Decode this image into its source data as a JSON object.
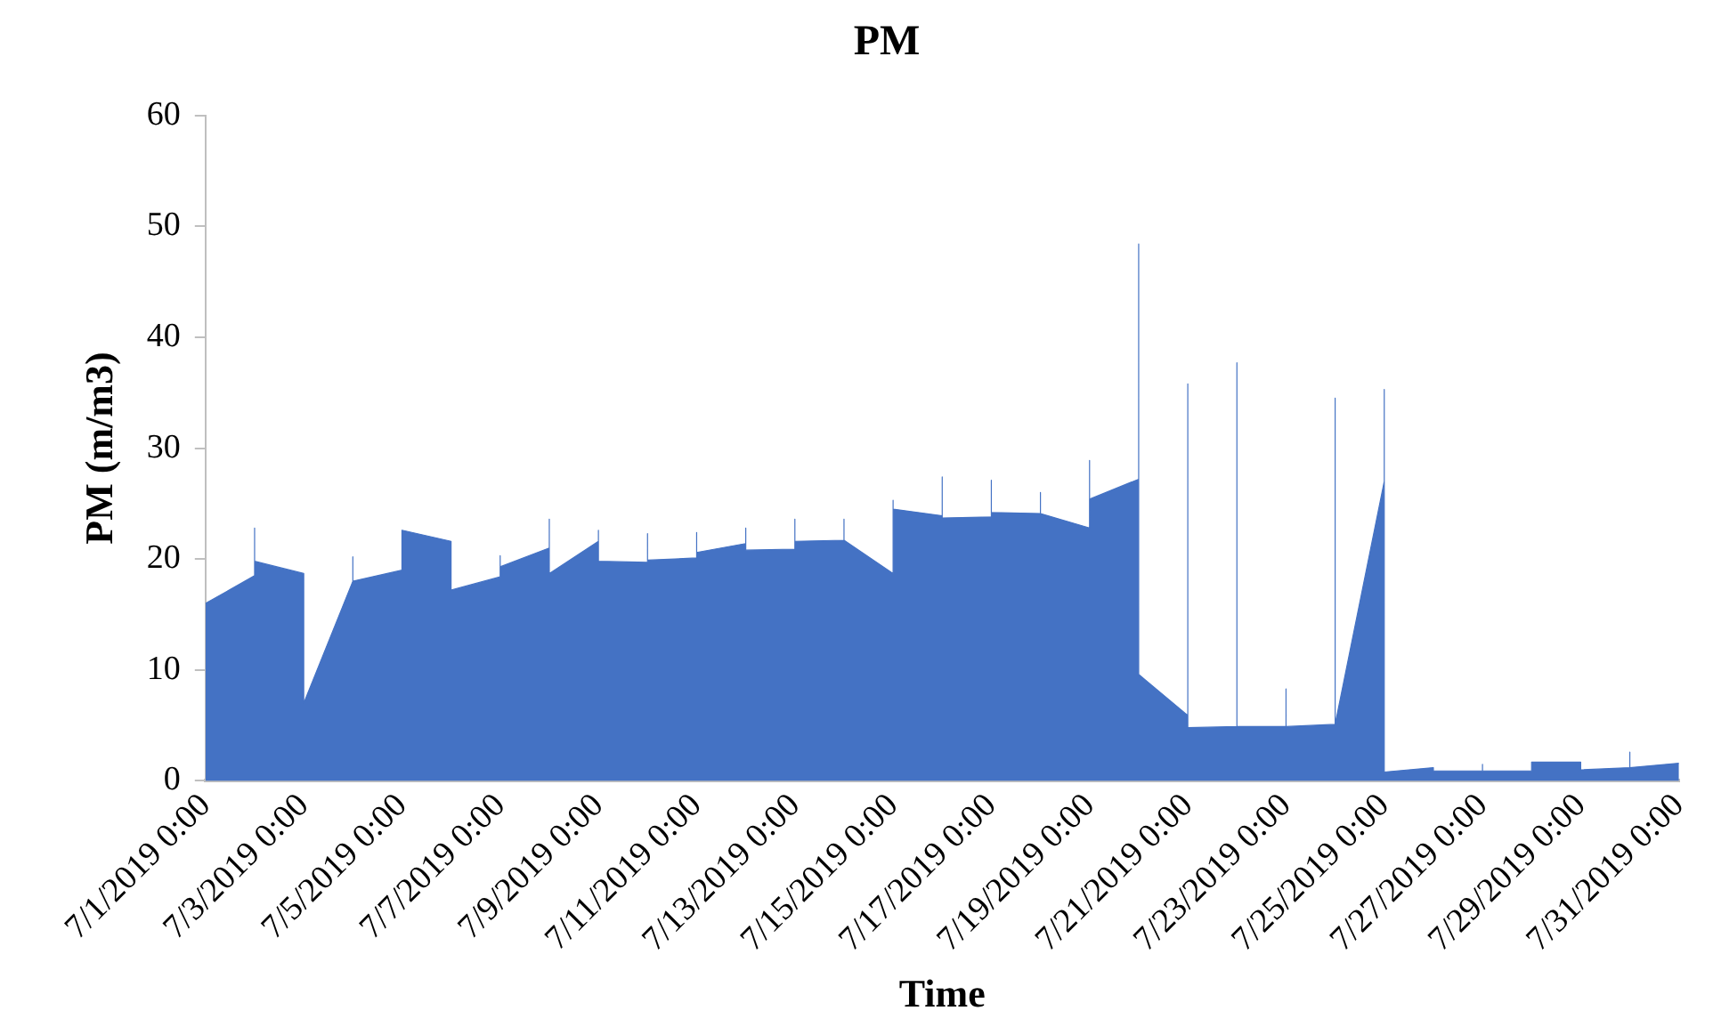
{
  "chart_data": {
    "type": "area",
    "title": "PM",
    "xlabel": "Time",
    "ylabel": "PM (m/m3)",
    "x": [
      "2019-07-01T00:00",
      "2019-07-02T00:00",
      "2019-07-02T00:00",
      "2019-07-02T00:00",
      "2019-07-03T00:00",
      "2019-07-03T00:00",
      "2019-07-04T00:00",
      "2019-07-04T00:00",
      "2019-07-04T00:00",
      "2019-07-05T00:00",
      "2019-07-05T00:00",
      "2019-07-06T00:00",
      "2019-07-06T00:00",
      "2019-07-07T00:00",
      "2019-07-07T00:00",
      "2019-07-07T00:00",
      "2019-07-08T00:00",
      "2019-07-08T00:00",
      "2019-07-08T00:00",
      "2019-07-09T00:00",
      "2019-07-09T00:00",
      "2019-07-09T00:00",
      "2019-07-10T00:00",
      "2019-07-10T00:00",
      "2019-07-10T00:00",
      "2019-07-11T00:00",
      "2019-07-11T00:00",
      "2019-07-11T00:00",
      "2019-07-12T00:00",
      "2019-07-12T00:00",
      "2019-07-12T00:00",
      "2019-07-13T00:00",
      "2019-07-13T00:00",
      "2019-07-13T00:00",
      "2019-07-14T00:00",
      "2019-07-14T00:00",
      "2019-07-14T00:00",
      "2019-07-15T00:00",
      "2019-07-15T00:00",
      "2019-07-15T00:00",
      "2019-07-16T00:00",
      "2019-07-16T00:00",
      "2019-07-16T00:00",
      "2019-07-17T00:00",
      "2019-07-17T00:00",
      "2019-07-17T00:00",
      "2019-07-18T00:00",
      "2019-07-18T00:00",
      "2019-07-18T00:00",
      "2019-07-19T00:00",
      "2019-07-19T00:00",
      "2019-07-19T00:00",
      "2019-07-20T00:00",
      "2019-07-20T00:00",
      "2019-07-20T00:00",
      "2019-07-21T00:00",
      "2019-07-21T00:00",
      "2019-07-21T00:00",
      "2019-07-22T00:00",
      "2019-07-22T00:00",
      "2019-07-22T00:00",
      "2019-07-23T00:00",
      "2019-07-23T00:00",
      "2019-07-23T00:00",
      "2019-07-24T00:00",
      "2019-07-24T00:00",
      "2019-07-24T00:00",
      "2019-07-25T00:00",
      "2019-07-25T00:00",
      "2019-07-25T00:00",
      "2019-07-26T00:00",
      "2019-07-26T00:00",
      "2019-07-27T00:00",
      "2019-07-27T00:00",
      "2019-07-27T00:00",
      "2019-07-28T00:00",
      "2019-07-28T00:00",
      "2019-07-29T00:00",
      "2019-07-29T00:00",
      "2019-07-30T00:00",
      "2019-07-30T00:00",
      "2019-07-30T00:00",
      "2019-07-31T00:00"
    ],
    "series": [
      {
        "color": "#4472c4",
        "values": [
          16.0,
          18.5,
          22.8,
          19.8,
          18.7,
          7.0,
          18.0,
          20.2,
          18.0,
          19.0,
          22.6,
          21.6,
          17.2,
          18.4,
          20.3,
          19.3,
          21.0,
          23.6,
          18.7,
          21.6,
          22.6,
          19.8,
          19.7,
          22.3,
          19.9,
          20.1,
          22.4,
          20.6,
          21.4,
          22.8,
          20.8,
          20.9,
          23.6,
          21.6,
          21.7,
          23.6,
          21.7,
          18.7,
          25.3,
          24.5,
          23.9,
          27.4,
          23.7,
          23.8,
          27.1,
          24.2,
          24.1,
          26.0,
          24.1,
          22.8,
          28.9,
          25.4,
          27.2,
          48.4,
          9.6,
          5.9,
          35.8,
          4.8,
          4.9,
          37.7,
          4.9,
          4.9,
          8.3,
          4.9,
          5.1,
          34.5,
          5.1,
          27.0,
          35.3,
          0.8,
          1.2,
          0.9,
          0.9,
          1.5,
          0.9,
          0.9,
          1.7,
          1.7,
          1.0,
          1.2,
          2.6,
          1.2,
          1.6
        ]
      }
    ],
    "xlim": [
      "2019-07-01T00:00",
      "2019-07-31T00:00"
    ],
    "xticks": [
      {
        "value": "2019-07-01T00:00",
        "label": "7/1/2019 0:00"
      },
      {
        "value": "2019-07-03T00:00",
        "label": "7/3/2019 0:00"
      },
      {
        "value": "2019-07-05T00:00",
        "label": "7/5/2019 0:00"
      },
      {
        "value": "2019-07-07T00:00",
        "label": "7/7/2019 0:00"
      },
      {
        "value": "2019-07-09T00:00",
        "label": "7/9/2019 0:00"
      },
      {
        "value": "2019-07-11T00:00",
        "label": "7/11/2019 0:00"
      },
      {
        "value": "2019-07-13T00:00",
        "label": "7/13/2019 0:00"
      },
      {
        "value": "2019-07-15T00:00",
        "label": "7/15/2019 0:00"
      },
      {
        "value": "2019-07-17T00:00",
        "label": "7/17/2019 0:00"
      },
      {
        "value": "2019-07-19T00:00",
        "label": "7/19/2019 0:00"
      },
      {
        "value": "2019-07-21T00:00",
        "label": "7/21/2019 0:00"
      },
      {
        "value": "2019-07-23T00:00",
        "label": "7/23/2019 0:00"
      },
      {
        "value": "2019-07-25T00:00",
        "label": "7/25/2019 0:00"
      },
      {
        "value": "2019-07-27T00:00",
        "label": "7/27/2019 0:00"
      },
      {
        "value": "2019-07-29T00:00",
        "label": "7/29/2019 0:00"
      },
      {
        "value": "2019-07-31T00:00",
        "label": "7/31/2019 0:00"
      }
    ],
    "ylim": [
      0,
      60
    ],
    "yticks": [
      0,
      10,
      20,
      30,
      40,
      50,
      60
    ],
    "grid": false,
    "legend": false
  }
}
